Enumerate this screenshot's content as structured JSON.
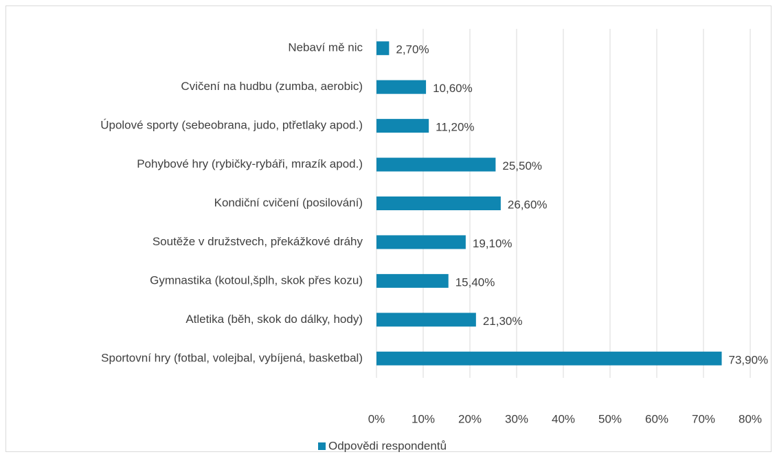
{
  "chart_data": {
    "type": "bar",
    "orientation": "horizontal",
    "categories": [
      "Nebaví mě nic",
      "Cvičení na hudbu (zumba, aerobic)",
      "Úpolové sporty (sebeobrana, judo, ptřetlaky apod.)",
      "Pohybové hry (rybičky-rybáři, mrazík apod.)",
      "Kondiční cvičení (posilování)",
      "Soutěže v družstvech, překážkové dráhy",
      "Gymnastika (kotoul,šplh, skok přes kozu)",
      "Atletika (běh, skok do dálky, hody)",
      "Sportovní hry (fotbal, volejbal, vybíjená, basketbal)"
    ],
    "series": [
      {
        "name": "Odpovědi respondentů",
        "color": "#0f86b1",
        "values": [
          2.7,
          10.6,
          11.2,
          25.5,
          26.6,
          19.1,
          15.4,
          21.3,
          73.9
        ],
        "value_labels": [
          "2,70%",
          "10,60%",
          "11,20%",
          "25,50%",
          "26,60%",
          "19,10%",
          "15,40%",
          "21,30%",
          "73,90%"
        ]
      }
    ],
    "xlim": [
      0,
      80
    ],
    "xticks": [
      {
        "value": 0,
        "label": "0%"
      },
      {
        "value": 10,
        "label": "10%"
      },
      {
        "value": 20,
        "label": "20%"
      },
      {
        "value": 30,
        "label": "30%"
      },
      {
        "value": 40,
        "label": "40%"
      },
      {
        "value": 50,
        "label": "50%"
      },
      {
        "value": 60,
        "label": "60%"
      },
      {
        "value": 70,
        "label": "70%"
      },
      {
        "value": 80,
        "label": "80%"
      }
    ],
    "grid": true,
    "legend": "bottom"
  }
}
